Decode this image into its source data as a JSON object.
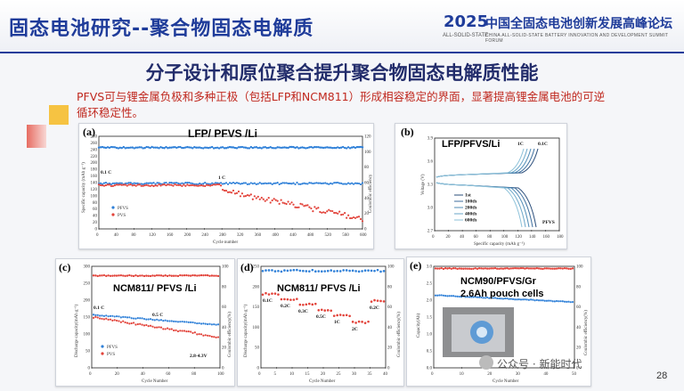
{
  "header": {
    "title": "固态电池研究--聚合物固态电解质",
    "year": "2025",
    "year_sub": "ALL-SOLID-STATE",
    "forum": "中国全固态电池创新发展高峰论坛",
    "forum_en": "CHINA ALL-SOLID-STATE BATTERY INNOVATION AND DEVELOPMENT SUMMIT FORUM"
  },
  "subtitle": "分子设计和原位聚合提升聚合物固态电解质性能",
  "description": "PFVS可与锂金属负极和多种正极（包括LFP和NCM811）形成相容稳定的界面，显著提高锂金属电池的可逆循环稳定性。",
  "page_number": "28",
  "watermark": "公众号 · 新能时代",
  "colors": {
    "pfvs": "#2f80d8",
    "pvs": "#e2433a",
    "header": "#1f3c9a",
    "desc": "#c0281e"
  },
  "panels": {
    "a": {
      "label": "(a)",
      "title": "LFP/ PFVS /Li",
      "xlabel": "Cycle number",
      "ylabel": "Specific capacity (mAh g⁻¹)",
      "y2label": "Coulombic efficiency",
      "rate1": "0.1 C",
      "rate2": "1 C",
      "legend": [
        "PFVS",
        "PVS"
      ],
      "xticks": [
        "0",
        "40",
        "80",
        "120",
        "160",
        "200",
        "240",
        "280",
        "320",
        "360",
        "400",
        "440",
        "480",
        "520",
        "560",
        "600"
      ],
      "yticks": [
        "0",
        "20",
        "40",
        "60",
        "80",
        "100",
        "120",
        "140",
        "160",
        "180",
        "200",
        "220",
        "240",
        "260",
        "280"
      ],
      "y2ticks": [
        "0",
        "20",
        "40",
        "60",
        "80",
        "100",
        "120"
      ]
    },
    "b": {
      "label": "(b)",
      "title": "LFP/PFVS/Li",
      "xlabel": "Specific capacity (mAh g⁻¹)",
      "ylabel": "Voltage (V)",
      "rate1": "1C",
      "rate2": "0.1C",
      "tag": "PFVS",
      "legend": [
        "1st",
        "100th",
        "200th",
        "400th",
        "600th"
      ],
      "xticks": [
        "0",
        "20",
        "40",
        "60",
        "80",
        "100",
        "120",
        "140",
        "160",
        "180"
      ],
      "yticks": [
        "2.7",
        "3.0",
        "3.3",
        "3.6",
        "3.9"
      ]
    },
    "c": {
      "label": "(c)",
      "title": "NCM811/ PFVS /Li",
      "xlabel": "Cycle Number",
      "ylabel": "Discharge capacity(mAh g⁻¹)",
      "y2label": "Coulombic efficiency(%)",
      "rate1": "0.1 C",
      "rate2": "0.5 C",
      "range": "2.8-4.3V",
      "legend": [
        "PFVS",
        "PVS"
      ],
      "xticks": [
        "0",
        "20",
        "40",
        "60",
        "80",
        "100"
      ],
      "yticks": [
        "0",
        "50",
        "100",
        "150",
        "200",
        "250",
        "300"
      ],
      "y2ticks": [
        "0",
        "20",
        "40",
        "60",
        "80",
        "100"
      ]
    },
    "d": {
      "label": "(d)",
      "title": "NCM811/ PFVS /Li",
      "xlabel": "Cycle Number",
      "ylabel": "Discharge capacity(mAh g⁻¹)",
      "y2label": "Coulombic efficiency(%)",
      "rates": [
        "0.1C",
        "0.2C",
        "0.3C",
        "0.5C",
        "1C",
        "2C",
        "0.2C"
      ],
      "xticks": [
        "0",
        "5",
        "10",
        "15",
        "20",
        "25",
        "30",
        "35",
        "40"
      ],
      "yticks": [
        "0",
        "50",
        "100",
        "150",
        "200",
        "250"
      ],
      "y2ticks": [
        "0",
        "20",
        "40",
        "60",
        "80",
        "100"
      ]
    },
    "e": {
      "label": "(e)",
      "title1": "NCM90/PFVS/Gr",
      "title2": "2.6Ah pouch cells",
      "xlabel": "Cycle Number",
      "ylabel": "Capacity(Ah)",
      "y2label": "Coulombic efficiency(%)",
      "xticks": [
        "0",
        "10",
        "20",
        "30",
        "40",
        "50"
      ],
      "yticks": [
        "0.0",
        "0.5",
        "1.0",
        "1.5",
        "2.0",
        "2.5",
        "3.0"
      ],
      "y2ticks": [
        "0",
        "20",
        "40",
        "60",
        "80",
        "100"
      ]
    }
  }
}
